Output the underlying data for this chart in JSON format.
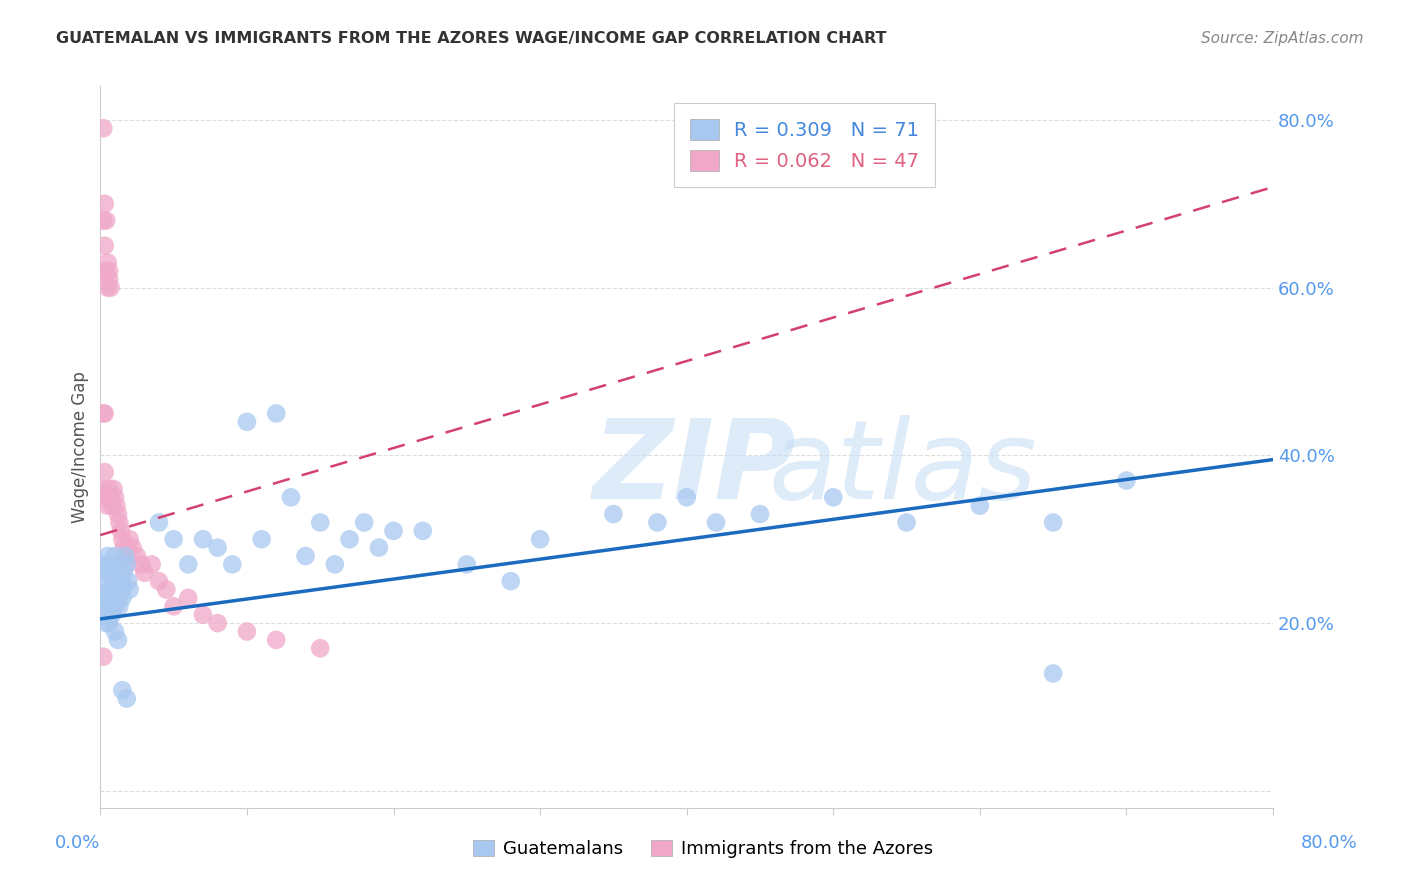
{
  "title": "GUATEMALAN VS IMMIGRANTS FROM THE AZORES WAGE/INCOME GAP CORRELATION CHART",
  "source": "Source: ZipAtlas.com",
  "ylabel": "Wage/Income Gap",
  "blue_R": 0.309,
  "blue_N": 71,
  "pink_R": 0.062,
  "pink_N": 47,
  "blue_color": "#a8c8f0",
  "pink_color": "#f0a8c8",
  "blue_line_color": "#1a6bbf",
  "pink_line_color": "#d44070",
  "blue_x": [
    0.002,
    0.003,
    0.004,
    0.005,
    0.006,
    0.007,
    0.008,
    0.009,
    0.01,
    0.011,
    0.012,
    0.013,
    0.014,
    0.015,
    0.016,
    0.017,
    0.018,
    0.019,
    0.02,
    0.003,
    0.004,
    0.005,
    0.006,
    0.007,
    0.008,
    0.009,
    0.01,
    0.011,
    0.012,
    0.013,
    0.014,
    0.015,
    0.04,
    0.05,
    0.06,
    0.07,
    0.08,
    0.09,
    0.1,
    0.11,
    0.12,
    0.13,
    0.14,
    0.15,
    0.16,
    0.17,
    0.18,
    0.19,
    0.2,
    0.22,
    0.25,
    0.28,
    0.3,
    0.35,
    0.38,
    0.4,
    0.42,
    0.45,
    0.5,
    0.55,
    0.6,
    0.65,
    0.7,
    0.004,
    0.006,
    0.008,
    0.01,
    0.012,
    0.015,
    0.018,
    0.65
  ],
  "blue_y": [
    0.27,
    0.26,
    0.25,
    0.28,
    0.24,
    0.27,
    0.26,
    0.25,
    0.28,
    0.24,
    0.27,
    0.26,
    0.25,
    0.24,
    0.26,
    0.28,
    0.27,
    0.25,
    0.24,
    0.23,
    0.22,
    0.21,
    0.23,
    0.22,
    0.24,
    0.23,
    0.22,
    0.24,
    0.23,
    0.22,
    0.24,
    0.23,
    0.32,
    0.3,
    0.27,
    0.3,
    0.29,
    0.27,
    0.44,
    0.3,
    0.45,
    0.35,
    0.28,
    0.32,
    0.27,
    0.3,
    0.32,
    0.29,
    0.31,
    0.31,
    0.27,
    0.25,
    0.3,
    0.33,
    0.32,
    0.35,
    0.32,
    0.33,
    0.35,
    0.32,
    0.34,
    0.32,
    0.37,
    0.2,
    0.2,
    0.21,
    0.19,
    0.18,
    0.12,
    0.11,
    0.14
  ],
  "pink_x": [
    0.002,
    0.003,
    0.004,
    0.005,
    0.006,
    0.007,
    0.002,
    0.003,
    0.004,
    0.005,
    0.006,
    0.002,
    0.003,
    0.002,
    0.003,
    0.004,
    0.005,
    0.006,
    0.007,
    0.008,
    0.009,
    0.01,
    0.011,
    0.012,
    0.013,
    0.014,
    0.015,
    0.016,
    0.017,
    0.018,
    0.019,
    0.02,
    0.022,
    0.025,
    0.028,
    0.03,
    0.035,
    0.04,
    0.045,
    0.05,
    0.06,
    0.07,
    0.08,
    0.1,
    0.12,
    0.15,
    0.002
  ],
  "pink_y": [
    0.79,
    0.7,
    0.68,
    0.63,
    0.61,
    0.6,
    0.68,
    0.65,
    0.62,
    0.6,
    0.62,
    0.45,
    0.45,
    0.36,
    0.38,
    0.35,
    0.34,
    0.36,
    0.35,
    0.34,
    0.36,
    0.35,
    0.34,
    0.33,
    0.32,
    0.31,
    0.3,
    0.29,
    0.28,
    0.27,
    0.29,
    0.3,
    0.29,
    0.28,
    0.27,
    0.26,
    0.27,
    0.25,
    0.24,
    0.22,
    0.23,
    0.21,
    0.2,
    0.19,
    0.18,
    0.17,
    0.16
  ],
  "xlim": [
    0.0,
    0.8
  ],
  "ylim": [
    -0.02,
    0.84
  ],
  "blue_line_x": [
    0.0,
    0.8
  ],
  "blue_line_y": [
    0.205,
    0.395
  ],
  "pink_line_x": [
    0.0,
    0.8
  ],
  "pink_line_y": [
    0.305,
    0.72
  ],
  "ytick_vals": [
    0.0,
    0.2,
    0.4,
    0.6,
    0.8
  ],
  "ytick_labels": [
    "",
    "20.0%",
    "40.0%",
    "60.0%",
    "80.0%"
  ],
  "background_color": "#ffffff",
  "grid_color": "#dddddd"
}
